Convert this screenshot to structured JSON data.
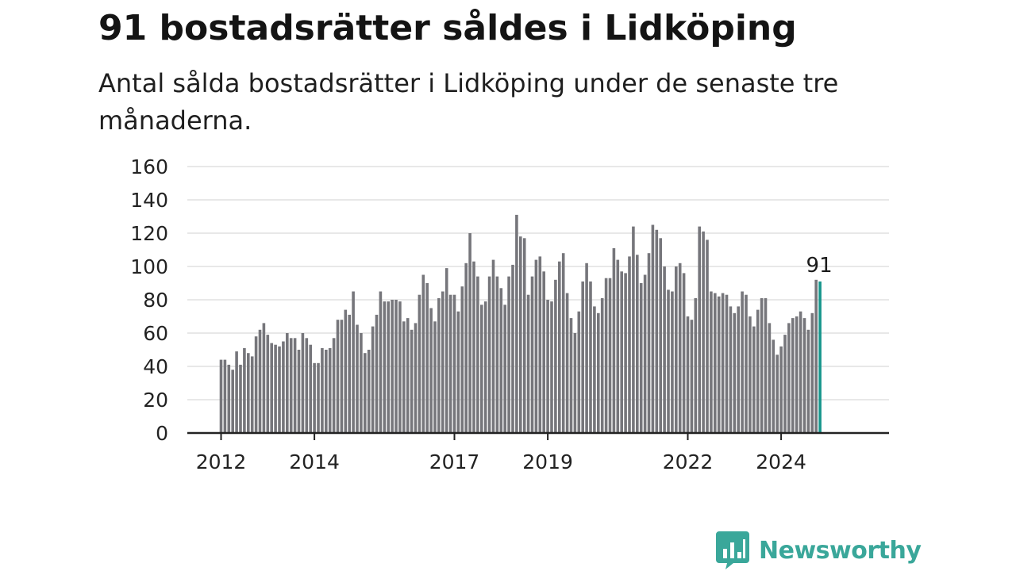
{
  "title": "91 bostadsrätter såldes i Lidköping",
  "subtitle": "Antal sålda bostadsrätter i Lidköping under de senaste tre månaderna.",
  "brand": {
    "name": "Newsworthy",
    "logo_icon": "bar-chart-speech-bubble-icon",
    "color": "#3aa79a"
  },
  "colors": {
    "bar": "#76767b",
    "highlight": "#17968c",
    "grid": "#d9d9d9",
    "axis": "#222222"
  },
  "chart_data": {
    "type": "bar",
    "x_start": "2012-01",
    "x_end": "2024-10",
    "ylim": [
      0,
      160
    ],
    "yticks": [
      0,
      20,
      40,
      60,
      80,
      100,
      120,
      140,
      160
    ],
    "xticks": [
      "2012",
      "2014",
      "2017",
      "2019",
      "2022",
      "2024"
    ],
    "grid": true,
    "highlight_last": true,
    "last_value_label": "91",
    "values": [
      44,
      44,
      41,
      38,
      49,
      41,
      51,
      48,
      46,
      58,
      62,
      66,
      59,
      54,
      53,
      52,
      55,
      60,
      57,
      57,
      50,
      60,
      57,
      53,
      42,
      42,
      51,
      50,
      51,
      57,
      68,
      68,
      74,
      71,
      85,
      65,
      60,
      48,
      50,
      64,
      71,
      85,
      79,
      79,
      80,
      80,
      79,
      67,
      69,
      62,
      66,
      83,
      95,
      90,
      75,
      67,
      81,
      85,
      99,
      83,
      83,
      73,
      88,
      102,
      120,
      103,
      94,
      77,
      79,
      94,
      104,
      94,
      87,
      77,
      94,
      101,
      131,
      118,
      117,
      83,
      94,
      104,
      106,
      97,
      80,
      79,
      92,
      103,
      108,
      84,
      69,
      60,
      73,
      91,
      102,
      91,
      76,
      72,
      81,
      93,
      93,
      111,
      104,
      97,
      96,
      106,
      124,
      107,
      90,
      95,
      108,
      125,
      122,
      117,
      100,
      86,
      85,
      100,
      102,
      96,
      70,
      68,
      81,
      124,
      121,
      116,
      85,
      84,
      82,
      84,
      83,
      76,
      72,
      76,
      85,
      83,
      70,
      64,
      74,
      81,
      81,
      66,
      56,
      47,
      52,
      59,
      66,
      69,
      70,
      73,
      69,
      62,
      72,
      92,
      91
    ]
  }
}
